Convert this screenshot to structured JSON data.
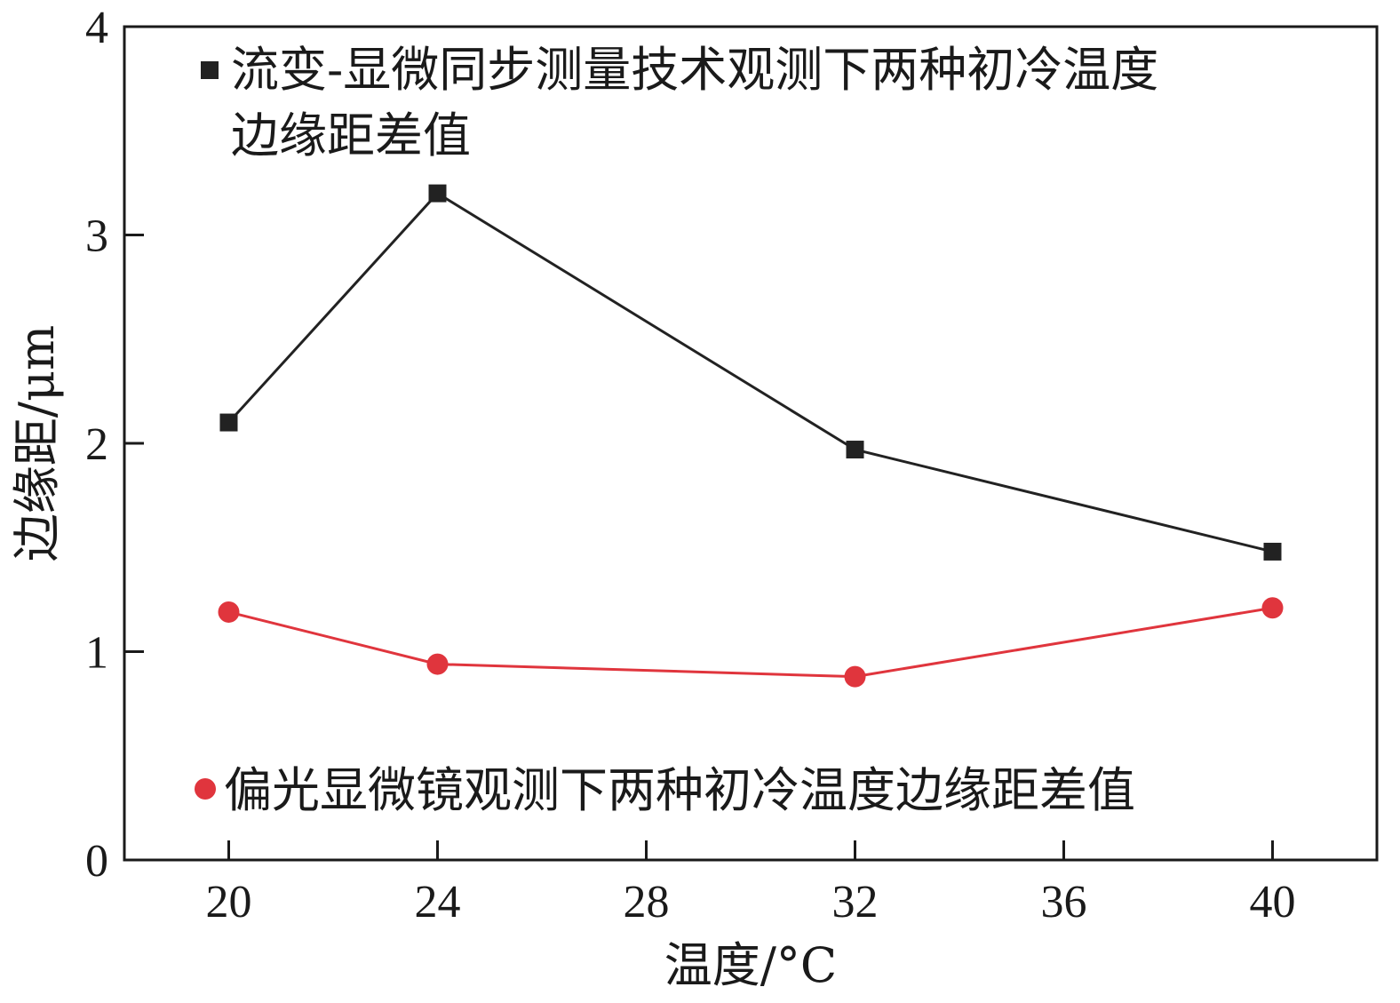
{
  "chart_data": {
    "type": "line",
    "title": "",
    "xlabel": "温度/°C",
    "ylabel": "边缘距/μm",
    "x": [
      20,
      24,
      32,
      40
    ],
    "xticks": [
      "20",
      "24",
      "28",
      "32",
      "36",
      "40"
    ],
    "yticks": [
      "0",
      "1",
      "2",
      "3",
      "4"
    ],
    "xlim": [
      18,
      42
    ],
    "ylim": [
      0,
      4
    ],
    "grid": false,
    "series": [
      {
        "name": "流变-显微同步测量技术观测下两种初冷温度边缘距差值",
        "name_lines": [
          "流变-显微同步测量技术观测下两种初冷温度",
          "边缘距差值"
        ],
        "marker": "square",
        "color": "#222222",
        "values": [
          2.1,
          3.2,
          1.97,
          1.48
        ]
      },
      {
        "name": "偏光显微镜观测下两种初冷温度边缘距差值",
        "name_lines": [
          "偏光显微镜观测下两种初冷温度边缘距差值"
        ],
        "marker": "circle",
        "color": "#e0353d",
        "values": [
          1.19,
          0.94,
          0.88,
          1.21
        ]
      }
    ]
  }
}
